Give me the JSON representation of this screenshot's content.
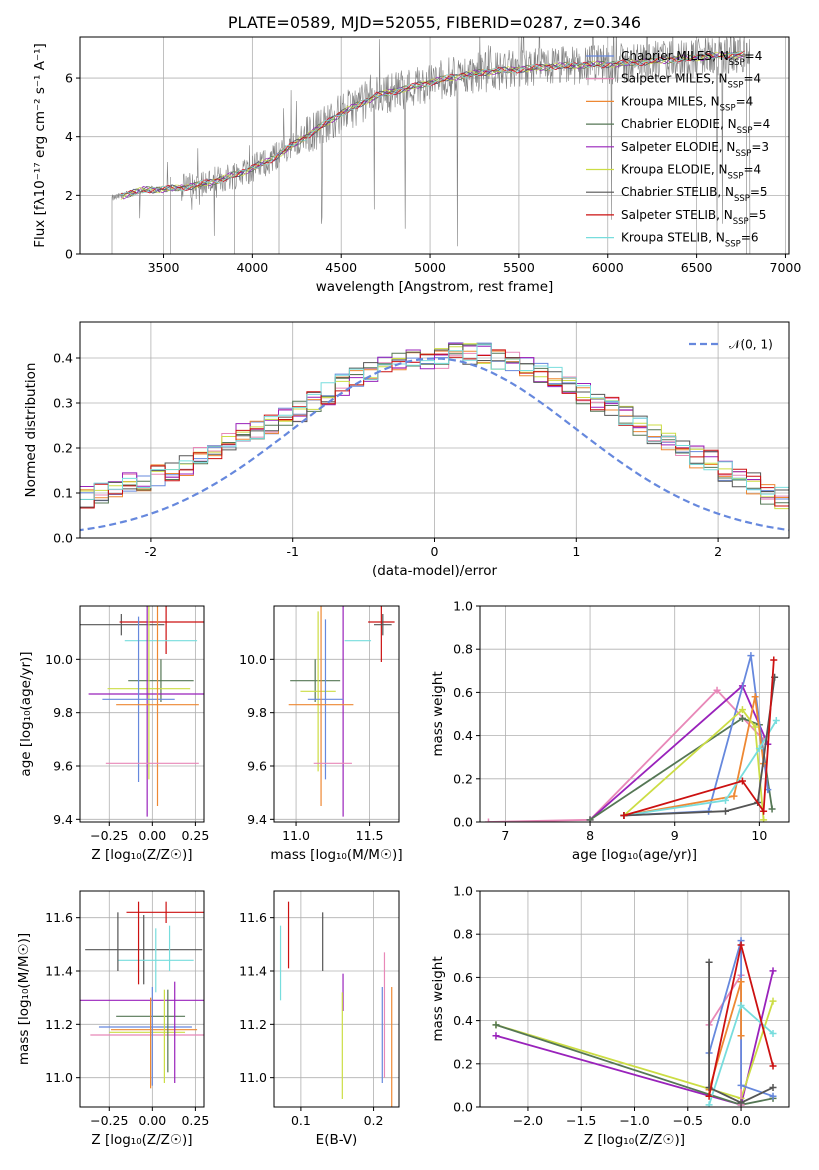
{
  "colors": {
    "Chabrier MILES": "#6688dd",
    "Salpeter MILES": "#e888b8",
    "Kroupa MILES": "#ee8833",
    "Chabrier ELODIE": "#557755",
    "Salpeter ELODIE": "#9922bb",
    "Kroupa ELODIE": "#ccdd44",
    "Chabrier STELIB": "#555555",
    "Salpeter STELIB": "#cc1111",
    "Kroupa STELIB": "#77dddd"
  },
  "chart_data": [
    {
      "id": "spectrum",
      "type": "line",
      "title": "PLATE=0589, MJD=52055, FIBERID=0287, z=0.346",
      "xlabel": "wavelength [Angstrom, rest frame]",
      "ylabel": "Flux [fλ10⁻¹⁷ erg cm⁻² s⁻¹ A⁻¹]",
      "xlim": [
        3030,
        7020
      ],
      "ylim": [
        0,
        7.4
      ],
      "xticks": [
        3500,
        4000,
        4500,
        5000,
        5500,
        6000,
        6500,
        7000
      ],
      "yticks": [
        0,
        2,
        4,
        6
      ],
      "data_range": [
        3210,
        6800
      ],
      "continuum_points": [
        [
          3210,
          1.9
        ],
        [
          3400,
          2.2
        ],
        [
          3500,
          2.2
        ],
        [
          3650,
          2.3
        ],
        [
          3800,
          2.5
        ],
        [
          3950,
          2.8
        ],
        [
          4100,
          3.2
        ],
        [
          4300,
          4.0
        ],
        [
          4500,
          4.8
        ],
        [
          4700,
          5.4
        ],
        [
          4900,
          5.7
        ],
        [
          5100,
          6.0
        ],
        [
          5300,
          6.2
        ],
        [
          5500,
          6.3
        ],
        [
          5700,
          6.4
        ],
        [
          5900,
          6.45
        ],
        [
          6100,
          6.5
        ],
        [
          6300,
          6.6
        ],
        [
          6500,
          6.7
        ],
        [
          6700,
          6.8
        ],
        [
          6800,
          6.8
        ]
      ],
      "legend": [
        {
          "name": "Chabrier MILES, N_SSP=4",
          "label": "Chabrier MILES, N",
          "sub": "SSP",
          "suffix": "=4"
        },
        {
          "name": "Salpeter MILES, N_SSP=4",
          "label": "Salpeter MILES, N",
          "sub": "SSP",
          "suffix": "=4"
        },
        {
          "name": "Kroupa MILES, N_SSP=4",
          "label": "Kroupa MILES, N",
          "sub": "SSP",
          "suffix": "=4"
        },
        {
          "name": "Chabrier ELODIE, N_SSP=4",
          "label": "Chabrier ELODIE, N",
          "sub": "SSP",
          "suffix": "=4"
        },
        {
          "name": "Salpeter ELODIE, N_SSP=3",
          "label": "Salpeter ELODIE, N",
          "sub": "SSP",
          "suffix": "=3"
        },
        {
          "name": "Kroupa ELODIE, N_SSP=4",
          "label": "Kroupa ELODIE, N",
          "sub": "SSP",
          "suffix": "=4"
        },
        {
          "name": "Chabrier STELIB, N_SSP=5",
          "label": "Chabrier STELIB, N",
          "sub": "SSP",
          "suffix": "=5"
        },
        {
          "name": "Salpeter STELIB, N_SSP=5",
          "label": "Salpeter STELIB, N",
          "sub": "SSP",
          "suffix": "=5"
        },
        {
          "name": "Kroupa STELIB, N_SSP=6",
          "label": "Kroupa STELIB, N",
          "sub": "SSP",
          "suffix": "=6"
        }
      ]
    },
    {
      "id": "residuals",
      "type": "line",
      "xlabel": "(data-model)/error",
      "ylabel": "Normed distribution",
      "xlim": [
        -2.5,
        2.5
      ],
      "ylim": [
        0,
        0.48
      ],
      "xticks": [
        -2,
        -1,
        0,
        1,
        2
      ],
      "yticks": [
        0.0,
        0.1,
        0.2,
        0.3,
        0.4
      ],
      "legend": "𝒩(0, 1)",
      "bin_width": 0.1,
      "base_histogram": [
        0.02,
        0.03,
        0.04,
        0.05,
        0.06,
        0.06,
        0.07,
        0.08,
        0.09,
        0.1,
        0.11,
        0.12,
        0.13,
        0.14,
        0.15,
        0.16,
        0.18,
        0.2,
        0.21,
        0.23,
        0.24,
        0.25,
        0.27,
        0.28,
        0.3,
        0.32,
        0.34,
        0.36,
        0.37,
        0.38,
        0.39,
        0.4,
        0.4,
        0.4,
        0.41,
        0.41,
        0.41,
        0.4,
        0.39,
        0.38,
        0.37,
        0.36,
        0.34,
        0.32,
        0.3,
        0.29,
        0.27,
        0.25,
        0.23,
        0.21,
        0.2,
        0.18,
        0.17,
        0.15,
        0.13,
        0.12,
        0.1,
        0.09,
        0.08,
        0.07,
        0.06,
        0.05,
        0.04,
        0.04,
        0.03,
        0.02
      ]
    },
    {
      "id": "age_vs_Z",
      "type": "scatter",
      "xlabel": "Z [log₁₀(Z/Z☉)]",
      "ylabel": "age  [log₁₀(age/yr)]",
      "xlim": [
        -0.42,
        0.3
      ],
      "ylim": [
        9.39,
        10.2
      ],
      "xticks": [
        -0.25,
        0.0,
        0.25
      ],
      "xtick_labels": [
        "−0.25",
        "0.00",
        "0.25"
      ],
      "yticks": [
        9.4,
        9.6,
        9.8,
        10.0
      ],
      "points": [
        {
          "series": "Chabrier STELIB",
          "x": -0.18,
          "xerr": 0.25,
          "y": 10.13,
          "yerr": 0.04
        },
        {
          "series": "Salpeter STELIB",
          "x": 0.08,
          "xerr": 0.27,
          "y": 10.14,
          "yerr": 0.12
        },
        {
          "series": "Kroupa STELIB",
          "x": 0.05,
          "xerr": 0.21,
          "y": 10.07,
          "yerr": 0.0
        },
        {
          "series": "Chabrier ELODIE",
          "x": 0.05,
          "xerr": 0.19,
          "y": 9.92,
          "yerr": 0.08
        },
        {
          "series": "Kroupa ELODIE",
          "x": -0.02,
          "xerr": 0.24,
          "y": 9.89,
          "yerr": 0.34
        },
        {
          "series": "Salpeter ELODIE",
          "x": -0.03,
          "xerr": 0.34,
          "y": 9.87,
          "yerr": 0.46
        },
        {
          "series": "Chabrier MILES",
          "x": -0.08,
          "xerr": 0.21,
          "y": 9.85,
          "yerr": 0.31
        },
        {
          "series": "Kroupa MILES",
          "x": 0.03,
          "xerr": 0.24,
          "y": 9.83,
          "yerr": 0.38
        },
        {
          "series": "Salpeter MILES",
          "x": 0.0,
          "xerr": 0.27,
          "y": 9.61,
          "yerr": 0.0
        }
      ]
    },
    {
      "id": "age_vs_mass",
      "type": "scatter",
      "xlabel": "mass [log₁₀(M/M☉)]",
      "xlim": [
        10.85,
        11.7
      ],
      "ylim": [
        9.39,
        10.2
      ],
      "xticks": [
        11.0,
        11.5
      ],
      "xtick_labels": [
        "11.0",
        "11.5"
      ],
      "yticks": [
        9.4,
        9.6,
        9.8,
        10.0
      ],
      "points": [
        {
          "series": "Salpeter STELIB",
          "x": 11.58,
          "xerr": 0.09,
          "y": 10.14,
          "yerr": 0.15
        },
        {
          "series": "Chabrier STELIB",
          "x": 11.59,
          "xerr": 0.06,
          "y": 10.13,
          "yerr": 0.04
        },
        {
          "series": "Kroupa STELIB",
          "x": 11.42,
          "xerr": 0.09,
          "y": 10.07,
          "yerr": 0.0
        },
        {
          "series": "Chabrier ELODIE",
          "x": 11.13,
          "xerr": 0.17,
          "y": 9.92,
          "yerr": 0.08
        },
        {
          "series": "Kroupa ELODIE",
          "x": 11.15,
          "xerr": 0.12,
          "y": 9.88,
          "yerr": 0.3
        },
        {
          "series": "Salpeter ELODIE",
          "x": 11.32,
          "xerr": 0.0,
          "y": 9.87,
          "yerr": 0.46
        },
        {
          "series": "Chabrier MILES",
          "x": 11.2,
          "xerr": 0.12,
          "y": 9.85,
          "yerr": 0.3
        },
        {
          "series": "Kroupa MILES",
          "x": 11.17,
          "xerr": 0.22,
          "y": 9.83,
          "yerr": 0.38
        },
        {
          "series": "Salpeter MILES",
          "x": 11.25,
          "xerr": 0.13,
          "y": 9.61,
          "yerr": 0.0
        }
      ]
    },
    {
      "id": "weight_vs_age",
      "type": "line",
      "xlabel": "age  [log₁₀(age/yr)]",
      "ylabel": "mass weight",
      "xlim": [
        6.7,
        10.35
      ],
      "ylim": [
        0,
        1.0
      ],
      "xticks": [
        7,
        8,
        9,
        10
      ],
      "yticks": [
        0.0,
        0.2,
        0.4,
        0.6,
        0.8,
        1.0
      ],
      "series": [
        {
          "name": "Salpeter MILES",
          "points": [
            [
              6.8,
              0.0
            ],
            [
              8.0,
              0.01
            ],
            [
              9.5,
              0.61
            ],
            [
              10.05,
              0.38
            ]
          ]
        },
        {
          "name": "Salpeter ELODIE",
          "points": [
            [
              8.0,
              0.01
            ],
            [
              9.8,
              0.63
            ],
            [
              10.1,
              0.36
            ]
          ]
        },
        {
          "name": "Chabrier ELODIE",
          "points": [
            [
              8.0,
              0.01
            ],
            [
              9.8,
              0.48
            ],
            [
              10.0,
              0.45
            ],
            [
              10.15,
              0.06
            ]
          ]
        },
        {
          "name": "Chabrier MILES",
          "points": [
            [
              8.4,
              0.03
            ],
            [
              9.4,
              0.05
            ],
            [
              9.9,
              0.77
            ],
            [
              10.1,
              0.15
            ]
          ]
        },
        {
          "name": "Kroupa MILES",
          "points": [
            [
              8.4,
              0.03
            ],
            [
              9.7,
              0.12
            ],
            [
              9.95,
              0.58
            ],
            [
              10.05,
              0.27
            ]
          ]
        },
        {
          "name": "Kroupa ELODIE",
          "points": [
            [
              8.4,
              0.03
            ],
            [
              9.8,
              0.52
            ],
            [
              9.95,
              0.44
            ],
            [
              10.05,
              0.01
            ]
          ]
        },
        {
          "name": "Kroupa STELIB",
          "points": [
            [
              8.4,
              0.03
            ],
            [
              9.6,
              0.1
            ],
            [
              10.0,
              0.34
            ],
            [
              10.2,
              0.47
            ]
          ]
        },
        {
          "name": "Chabrier STELIB",
          "points": [
            [
              8.4,
              0.03
            ],
            [
              9.6,
              0.05
            ],
            [
              9.98,
              0.09
            ],
            [
              10.18,
              0.67
            ]
          ]
        },
        {
          "name": "Salpeter STELIB",
          "points": [
            [
              8.4,
              0.03
            ],
            [
              9.8,
              0.19
            ],
            [
              10.05,
              0.05
            ],
            [
              10.17,
              0.75
            ]
          ]
        }
      ]
    },
    {
      "id": "mass_vs_Z",
      "type": "scatter",
      "xlabel": "Z [log₁₀(Z/Z☉)]",
      "ylabel": "mass [log₁₀(M/M☉)]",
      "xlim": [
        -0.42,
        0.3
      ],
      "ylim": [
        10.89,
        11.7
      ],
      "xticks": [
        -0.25,
        0.0,
        0.25
      ],
      "xtick_labels": [
        "−0.25",
        "0.00",
        "0.25"
      ],
      "yticks": [
        11.0,
        11.2,
        11.4,
        11.6
      ],
      "points": [
        {
          "series": "Salpeter STELIB",
          "x": 0.08,
          "xerr": 0.23,
          "y": 11.62,
          "yerr": 0.04
        },
        {
          "series": "Chabrier STELIB",
          "x": -0.05,
          "xerr": 0.34,
          "y": 11.48,
          "yerr": 0.13
        },
        {
          "series": "Kroupa STELIB",
          "x": 0.02,
          "xerr": 0.22,
          "y": 11.44,
          "yerr": 0.12
        },
        {
          "series": "Salpeter ELODIE",
          "x": -0.06,
          "xerr": 0.36,
          "y": 11.29,
          "yerr": 0.0
        },
        {
          "series": "Chabrier ELODIE",
          "x": -0.01,
          "xerr": 0.2,
          "y": 11.23,
          "yerr": 0.0
        },
        {
          "series": "Chabrier MILES",
          "x": -0.04,
          "xerr": 0.27,
          "y": 11.19,
          "yerr": 0.0
        },
        {
          "series": "Kroupa MILES",
          "x": 0.01,
          "xerr": 0.25,
          "y": 11.18,
          "yerr": 0.0
        },
        {
          "series": "Kroupa ELODIE",
          "x": -0.03,
          "xerr": 0.22,
          "y": 11.17,
          "yerr": 0.0
        },
        {
          "series": "Salpeter MILES",
          "x": -0.03,
          "xerr": 0.33,
          "y": 11.16,
          "yerr": 0.0
        }
      ],
      "verticals": [
        {
          "series": "Chabrier MILES",
          "x": 0.0,
          "y1": 10.97,
          "y2": 11.34
        },
        {
          "series": "Kroupa MILES",
          "x": -0.01,
          "y1": 10.96,
          "y2": 11.3
        },
        {
          "series": "Kroupa ELODIE",
          "x": 0.07,
          "y1": 10.98,
          "y2": 11.33
        },
        {
          "series": "Chabrier ELODIE",
          "x": 0.09,
          "y1": 11.02,
          "y2": 11.33
        },
        {
          "series": "Salpeter ELODIE",
          "x": 0.13,
          "y1": 10.98,
          "y2": 11.36
        },
        {
          "series": "Kroupa STELIB",
          "x": 0.1,
          "y1": 11.4,
          "y2": 11.57
        },
        {
          "series": "Chabrier STELIB",
          "x": -0.2,
          "y1": 11.4,
          "y2": 11.62
        },
        {
          "series": "Salpeter STELIB",
          "x": -0.08,
          "y1": 11.35,
          "y2": 11.66
        }
      ]
    },
    {
      "id": "mass_vs_EBV",
      "type": "scatter",
      "xlabel": "E(B-V)",
      "xlim": [
        0.063,
        0.235
      ],
      "ylim": [
        10.89,
        11.7
      ],
      "xticks": [
        0.1,
        0.2
      ],
      "xtick_labels": [
        "0.1",
        "0.2"
      ],
      "yticks": [
        11.0,
        11.2,
        11.4,
        11.6
      ],
      "verticals": [
        {
          "series": "Kroupa STELIB",
          "x": 0.072,
          "y1": 11.29,
          "y2": 11.57
        },
        {
          "series": "Salpeter STELIB",
          "x": 0.083,
          "y1": 11.41,
          "y2": 11.66
        },
        {
          "series": "Chabrier STELIB",
          "x": 0.13,
          "y1": 11.4,
          "y2": 11.62
        },
        {
          "series": "Salpeter ELODIE",
          "x": 0.158,
          "y1": 11.25,
          "y2": 11.39
        },
        {
          "series": "Kroupa ELODIE",
          "x": 0.157,
          "y1": 10.92,
          "y2": 11.32
        },
        {
          "series": "Chabrier MILES",
          "x": 0.212,
          "y1": 10.98,
          "y2": 11.34
        },
        {
          "series": "Salpeter MILES",
          "x": 0.215,
          "y1": 11.0,
          "y2": 11.47
        },
        {
          "series": "Kroupa MILES",
          "x": 0.225,
          "y1": 10.89,
          "y2": 11.34
        }
      ]
    },
    {
      "id": "weight_vs_Z",
      "type": "line",
      "xlabel": "Z [log₁₀(Z/Z☉)]",
      "ylabel": "mass weight",
      "xlim": [
        -2.45,
        0.45
      ],
      "ylim": [
        0,
        1.0
      ],
      "xticks": [
        -2.0,
        -1.5,
        -1.0,
        -0.5,
        0.0
      ],
      "xtick_labels": [
        "−2.0",
        "−1.5",
        "−1.0",
        "−0.5",
        "0.0"
      ],
      "yticks": [
        0.0,
        0.2,
        0.4,
        0.6,
        0.8,
        1.0
      ],
      "series": [
        {
          "name": "Salpeter ELODIE",
          "points": [
            [
              -2.3,
              0.33
            ],
            [
              0.0,
              0.01
            ],
            [
              0.3,
              0.63
            ]
          ]
        },
        {
          "name": "Kroupa ELODIE",
          "points": [
            [
              -2.3,
              0.38
            ],
            [
              0.0,
              0.04
            ],
            [
              0.3,
              0.49
            ]
          ]
        },
        {
          "name": "Chabrier ELODIE",
          "points": [
            [
              -2.3,
              0.38
            ],
            [
              0.0,
              0.01
            ],
            [
              0.3,
              0.04
            ]
          ]
        },
        {
          "name": "Salpeter MILES",
          "points": [
            [
              -0.3,
              0.38
            ],
            [
              0.0,
              0.61
            ],
            [
              0.0,
              0.01
            ]
          ]
        },
        {
          "name": "Chabrier MILES",
          "points": [
            [
              -0.3,
              0.25
            ],
            [
              0.0,
              0.77
            ],
            [
              0.0,
              0.1
            ],
            [
              0.3,
              0.05
            ]
          ]
        },
        {
          "name": "Kroupa MILES",
          "points": [
            [
              -0.3,
              0.08
            ],
            [
              0.0,
              0.58
            ],
            [
              0.0,
              0.33
            ]
          ]
        },
        {
          "name": "Kroupa STELIB",
          "points": [
            [
              -0.3,
              0.01
            ],
            [
              0.0,
              0.47
            ],
            [
              0.3,
              0.34
            ]
          ]
        },
        {
          "name": "Chabrier STELIB",
          "points": [
            [
              -0.3,
              0.67
            ],
            [
              -0.3,
              0.09
            ],
            [
              0.0,
              0.02
            ],
            [
              0.3,
              0.09
            ]
          ]
        },
        {
          "name": "Salpeter STELIB",
          "points": [
            [
              -0.3,
              0.05
            ],
            [
              0.0,
              0.75
            ],
            [
              0.3,
              0.19
            ]
          ]
        }
      ]
    }
  ]
}
